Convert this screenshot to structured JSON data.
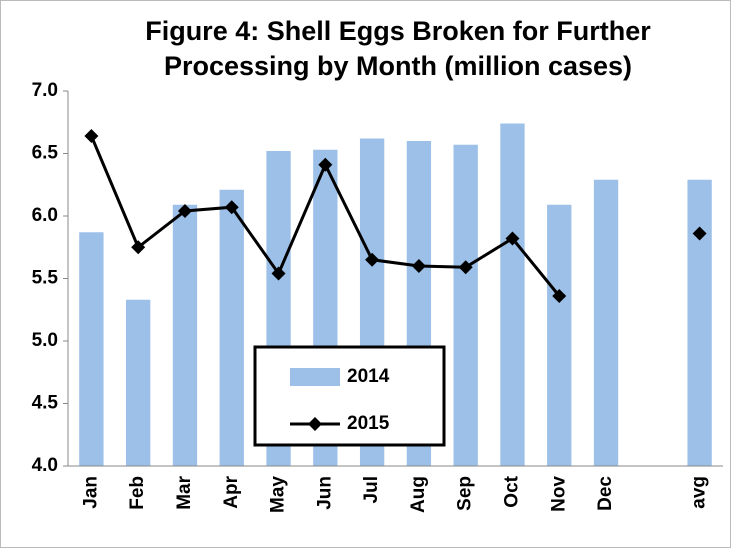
{
  "chart_data": {
    "type": "bar-line",
    "title": [
      "Figure  4: Shell Eggs Broken for Further",
      "Processing by Month (million cases)"
    ],
    "categories": [
      "Jan",
      "Feb",
      "Mar",
      "Apr",
      "May",
      "Jun",
      "Jul",
      "Aug",
      "Sep",
      "Oct",
      "Nov",
      "Dec",
      null,
      "avg"
    ],
    "series": [
      {
        "name": "2014",
        "type": "bar",
        "color": "#9dc0e8",
        "values": [
          5.87,
          5.33,
          6.09,
          6.21,
          6.52,
          6.53,
          6.62,
          6.6,
          6.57,
          6.74,
          6.09,
          6.29,
          null,
          6.29
        ]
      },
      {
        "name": "2015",
        "type": "line",
        "color": "#000000",
        "values": [
          6.64,
          5.75,
          6.04,
          6.07,
          5.54,
          6.41,
          5.65,
          5.6,
          5.59,
          5.82,
          5.36,
          null,
          null,
          5.86
        ]
      }
    ],
    "ylim": [
      4.0,
      7.0
    ],
    "yticks": [
      {
        "value": 4,
        "label": "4.0"
      },
      {
        "value": 4.5,
        "label": "4.5"
      },
      {
        "value": 5,
        "label": "5.0"
      },
      {
        "value": 5.5,
        "label": "5.5"
      },
      {
        "value": 6,
        "label": "6.0"
      },
      {
        "value": 6.5,
        "label": "6.5"
      },
      {
        "value": 7,
        "label": "7.0"
      }
    ],
    "grid": false,
    "legend": "bottom-center"
  }
}
